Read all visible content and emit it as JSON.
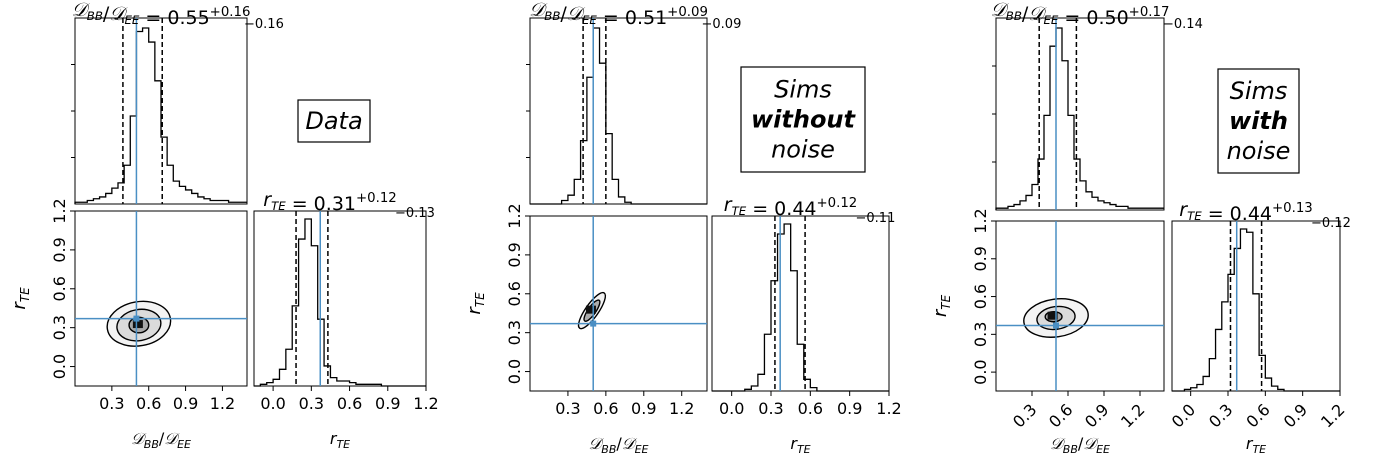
{
  "styles": {
    "vline_color": "#4a8fc4",
    "hist_color": "#000000",
    "axis_color": "#000000"
  },
  "chart_data": [
    {
      "type": "corner",
      "label_box": [
        "Data"
      ],
      "label_bold": [
        false
      ],
      "top_title": {
        "main": "𝒟BB/𝒟EE = 0.55",
        "sup": "+0.16",
        "sub": "−0.16"
      },
      "side_title": {
        "main": "rTE = 0.31",
        "sup": "+0.12",
        "sub": "−0.13"
      },
      "xlabel_2d": "𝒟BB/𝒟EE",
      "ylabel_2d": "rTE",
      "xlabel_hist": "rTE",
      "x_ticks": [
        "0.3",
        "0.6",
        "0.9",
        "1.2"
      ],
      "y_ticks": [
        "0.0",
        "0.3",
        "0.6",
        "0.9",
        "1.2"
      ],
      "r_ticks": [
        "0.0",
        "0.3",
        "0.6",
        "0.9",
        "1.2"
      ],
      "tick_rotation": 0,
      "d_range": [
        0.0,
        1.4
      ],
      "r_range": [
        -0.15,
        1.2
      ],
      "truth": {
        "d": 0.5,
        "r": 0.37
      },
      "d_quantiles": [
        0.39,
        0.55,
        0.71
      ],
      "r_quantiles": [
        0.18,
        0.31,
        0.43
      ],
      "d_hist": {
        "start": 0.0,
        "width": 0.05,
        "counts": [
          1,
          1,
          2,
          3,
          4,
          6,
          9,
          12,
          22,
          50,
          98,
          100,
          92,
          70,
          38,
          22,
          13,
          10,
          8,
          6,
          4,
          3,
          2,
          2,
          2,
          1,
          1,
          1
        ]
      },
      "r_hist": {
        "start": -0.15,
        "width": 0.05,
        "counts": [
          0,
          1,
          2,
          4,
          10,
          22,
          48,
          88,
          100,
          84,
          40,
          12,
          5,
          3,
          3,
          2,
          1,
          1,
          1,
          1,
          0,
          0,
          0,
          0,
          0,
          0,
          0
        ]
      },
      "contours": [
        {
          "cx": 0.52,
          "cy": 0.33,
          "rx": 0.26,
          "ry": 0.17,
          "rot": -10
        },
        {
          "cx": 0.52,
          "cy": 0.32,
          "rx": 0.18,
          "ry": 0.12,
          "rot": -10
        },
        {
          "cx": 0.52,
          "cy": 0.32,
          "rx": 0.08,
          "ry": 0.06,
          "rot": 0
        }
      ]
    },
    {
      "type": "corner",
      "label_box": [
        "Sims",
        "without",
        "noise"
      ],
      "label_bold": [
        false,
        true,
        false
      ],
      "top_title": {
        "main": "𝒟BB/𝒟EE = 0.51",
        "sup": "+0.09",
        "sub": "−0.09"
      },
      "side_title": {
        "main": "rTE = 0.44",
        "sup": "+0.12",
        "sub": "−0.11"
      },
      "xlabel_2d": "𝒟BB/𝒟EE",
      "ylabel_2d": "rTE",
      "xlabel_hist": "rTE",
      "x_ticks": [
        "0.3",
        "0.6",
        "0.9",
        "1.2"
      ],
      "y_ticks": [
        "0.0",
        "0.3",
        "0.6",
        "0.9",
        "1.2"
      ],
      "r_ticks": [
        "0.0",
        "0.3",
        "0.6",
        "0.9",
        "1.2"
      ],
      "tick_rotation": 0,
      "d_range": [
        0.0,
        1.4
      ],
      "r_range": [
        -0.15,
        1.2
      ],
      "truth": {
        "d": 0.5,
        "r": 0.37
      },
      "d_quantiles": [
        0.42,
        0.51,
        0.6
      ],
      "r_quantiles": [
        0.33,
        0.44,
        0.56
      ],
      "d_hist": {
        "start": 0.0,
        "width": 0.05,
        "counts": [
          0,
          0,
          0,
          0,
          0,
          2,
          5,
          14,
          36,
          72,
          100,
          80,
          40,
          14,
          4,
          1,
          0,
          0,
          0,
          0,
          0,
          0,
          0,
          0,
          0,
          0,
          0,
          0
        ]
      },
      "r_hist": {
        "start": -0.15,
        "width": 0.05,
        "counts": [
          0,
          0,
          0,
          0,
          0,
          1,
          3,
          10,
          34,
          66,
          94,
          100,
          72,
          28,
          7,
          2,
          0,
          0,
          0,
          0,
          0,
          0,
          0,
          0,
          0,
          0,
          0
        ]
      },
      "contours": [
        {
          "cx": 0.49,
          "cy": 0.47,
          "rx": 0.17,
          "ry": 0.05,
          "rot": -55
        },
        {
          "cx": 0.49,
          "cy": 0.47,
          "rx": 0.1,
          "ry": 0.03,
          "rot": -55
        }
      ]
    },
    {
      "type": "corner",
      "label_box": [
        "Sims",
        "with",
        "noise"
      ],
      "label_bold": [
        false,
        true,
        false
      ],
      "top_title": {
        "main": "𝒟BB/𝒟EE = 0.50",
        "sup": "+0.17",
        "sub": "−0.14"
      },
      "side_title": {
        "main": "rTE = 0.44",
        "sup": "+0.13",
        "sub": "−0.12"
      },
      "xlabel_2d": "𝒟BB/𝒟EE",
      "ylabel_2d": "rTE",
      "xlabel_hist": "rTE",
      "x_ticks": [
        "0.3",
        "0.6",
        "0.9",
        "1.2"
      ],
      "y_ticks": [
        "0.0",
        "0.3",
        "0.6",
        "0.9",
        "1.2"
      ],
      "r_ticks": [
        "0.0",
        "0.3",
        "0.6",
        "0.9",
        "1.2"
      ],
      "tick_rotation": 45,
      "d_range": [
        0.0,
        1.4
      ],
      "r_range": [
        -0.15,
        1.2
      ],
      "truth": {
        "d": 0.5,
        "r": 0.37
      },
      "d_quantiles": [
        0.36,
        0.5,
        0.67
      ],
      "r_quantiles": [
        0.32,
        0.44,
        0.57
      ],
      "d_hist": {
        "start": 0.0,
        "width": 0.05,
        "counts": [
          1,
          1,
          2,
          3,
          5,
          8,
          14,
          28,
          52,
          90,
          100,
          82,
          52,
          28,
          16,
          10,
          7,
          5,
          4,
          3,
          2,
          2,
          1,
          1,
          1,
          1,
          1,
          1
        ]
      },
      "r_hist": {
        "start": -0.15,
        "width": 0.05,
        "counts": [
          0,
          0,
          1,
          2,
          4,
          9,
          20,
          38,
          55,
          72,
          88,
          100,
          98,
          60,
          22,
          8,
          3,
          1,
          0,
          0,
          0,
          0,
          0,
          0,
          0,
          0,
          0
        ]
      },
      "contours": [
        {
          "cx": 0.5,
          "cy": 0.43,
          "rx": 0.27,
          "ry": 0.15,
          "rot": -8
        },
        {
          "cx": 0.5,
          "cy": 0.43,
          "rx": 0.16,
          "ry": 0.09,
          "rot": -8
        },
        {
          "cx": 0.48,
          "cy": 0.44,
          "rx": 0.07,
          "ry": 0.04,
          "rot": 0
        }
      ]
    }
  ]
}
